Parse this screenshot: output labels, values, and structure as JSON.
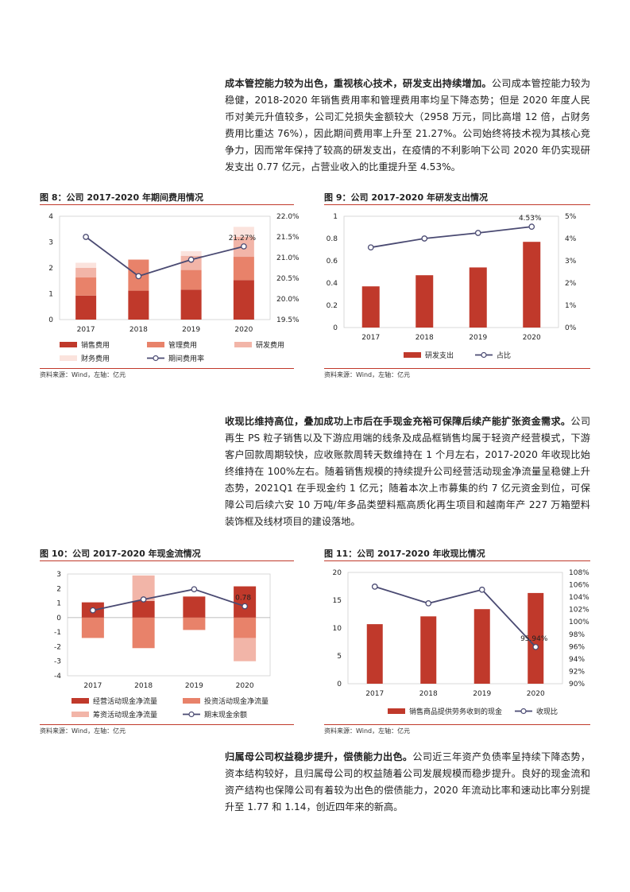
{
  "paragraphs": [
    {
      "bold": "成本管控能力较为出色，重视核心技术，研发支出持续增加。",
      "text": "公司成本管控能力较为稳健，2018-2020 年销售费用率和管理费用率均呈下降态势；但是 2020 年度人民币对美元升值较多，公司汇兑损失金额较大（2958 万元，同比高增 12 倍，占财务费用比重达 76%），因此期间费用率上升至 21.27%。公司始终将技术视为其核心竞争力，因而常年保持了较高的研发支出，在疫情的不利影响下公司 2020 年仍实现研发支出 0.77 亿元，占营业收入的比重提升至 4.53%。"
    },
    {
      "bold": "收现比维持高位，叠加成功上市后在手现金充裕可保障后续产能扩张资金需求。",
      "text": "公司再生 PS 粒子销售以及下游应用端的线条及成品框销售均属于轻资产经营模式，下游客户回款周期较快，应收账款周转天数维持在 1 个月左右，2017-2020 年收现比始终维持在 100%左右。随着销售规模的持续提升公司经营活动现金净流量呈稳健上升态势，2021Q1 在手现金约 1 亿元；随着本次上市募集的约 7 亿元资金到位，可保障公司后续六安 10 万吨/年多品类塑料瓶高质化再生项目和越南年产 227 万箱塑料装饰框及线材项目的建设落地。"
    },
    {
      "bold": "归属母公司权益稳步提升，偿债能力出色。",
      "text": "公司近三年资产负债率呈持续下降态势，资本结构较好，且归属母公司的权益随着公司发展规模而稳步提升。良好的现金流和资产结构也保障公司有着较为出色的偿债能力，2020 年流动比率和速动比率分别提升至 1.77 和 1.14，创近四年来的新高。"
    }
  ],
  "figures": [
    {
      "title": "图 8：公司 2017-2020 年期间费用情况",
      "source": "资料来源：Wind，左轴：亿元"
    },
    {
      "title": "图 9：公司 2017-2020 年研发支出情况",
      "source": "资料来源：Wind，左轴：亿元"
    },
    {
      "title": "图 10：公司 2017-2020 年现金流情况",
      "source": "资料来源：Wind，左轴：亿元"
    },
    {
      "title": "图 11：公司 2017-2020 年收现比情况",
      "source": "资料来源：Wind，左轴：亿元"
    }
  ],
  "chart_data": [
    {
      "type": "bar",
      "stacked": true,
      "categories": [
        "2017",
        "2018",
        "2019",
        "2020"
      ],
      "series": [
        {
          "name": "销售费用",
          "values": [
            0.93,
            1.12,
            1.16,
            1.53
          ],
          "color": "#c0392b"
        },
        {
          "name": "管理费用",
          "values": [
            0.7,
            1.2,
            0.76,
            0.9
          ],
          "color": "#e8826a"
        },
        {
          "name": "研发费用",
          "values": [
            0.37,
            0.0,
            0.55,
            0.77
          ],
          "color": "#f2b5a8"
        },
        {
          "name": "财务费用",
          "values": [
            0.2,
            0.02,
            0.18,
            0.39
          ],
          "color": "#fbe3dd"
        }
      ],
      "line": {
        "name": "期间费用率",
        "values": [
          21.5,
          20.55,
          20.95,
          21.27
        ],
        "color": "#4a4a72",
        "label_index": 3,
        "label": "21.27%"
      },
      "ylim": [
        0,
        4
      ],
      "yticks": [
        "0",
        "1",
        "2",
        "3",
        "4"
      ],
      "y2lim": [
        19.5,
        22.0
      ],
      "y2ticks": [
        "19.5%",
        "20.0%",
        "20.5%",
        "21.0%",
        "21.5%",
        "22.0%"
      ]
    },
    {
      "type": "bar",
      "categories": [
        "2017",
        "2018",
        "2019",
        "2020"
      ],
      "series": [
        {
          "name": "研发支出",
          "values": [
            0.37,
            0.47,
            0.54,
            0.77
          ],
          "color": "#c0392b"
        }
      ],
      "line": {
        "name": "占比",
        "values": [
          3.6,
          4.0,
          4.25,
          4.53
        ],
        "color": "#4a4a72",
        "label_index": 3,
        "label": "4.53%"
      },
      "ylim": [
        0,
        1
      ],
      "yticks": [
        "0",
        "0.2",
        "0.4",
        "0.6",
        "0.8",
        "1"
      ],
      "y2lim": [
        0,
        5
      ],
      "y2ticks": [
        "0%",
        "1%",
        "2%",
        "3%",
        "4%",
        "5%"
      ]
    },
    {
      "type": "bar",
      "stacked": true,
      "categories": [
        "2017",
        "2018",
        "2019",
        "2020"
      ],
      "series": [
        {
          "name": "经营活动现金净流量",
          "values": [
            1.05,
            1.15,
            1.45,
            2.15
          ],
          "color": "#c0392b"
        },
        {
          "name": "投资活动现金净流量",
          "values": [
            -1.4,
            -2.1,
            -0.85,
            -1.4
          ],
          "color": "#e8826a"
        },
        {
          "name": "筹资活动现金净流量",
          "values": [
            0.0,
            1.75,
            0.0,
            -1.6
          ],
          "color": "#f2b5a8"
        }
      ],
      "line": {
        "name": "期末现金余额",
        "values": [
          0.5,
          1.25,
          1.95,
          0.78
        ],
        "color": "#4a4a72",
        "label_index": 3,
        "label": "0.78"
      },
      "ylim": [
        -4,
        3
      ],
      "yticks": [
        "-4",
        "-3",
        "-2",
        "-1",
        "0",
        "1",
        "2",
        "3"
      ]
    },
    {
      "type": "bar",
      "categories": [
        "2017",
        "2018",
        "2019",
        "2020"
      ],
      "series": [
        {
          "name": "销售商品提供劳务收到的现金",
          "values": [
            10.7,
            12.1,
            13.4,
            16.3
          ],
          "color": "#c0392b"
        }
      ],
      "line": {
        "name": "收现比",
        "values": [
          105.7,
          103.0,
          105.2,
          95.94
        ],
        "color": "#4a4a72",
        "label_index": 3,
        "label": "95.94%"
      },
      "ylim": [
        0,
        20
      ],
      "yticks": [
        "0",
        "5",
        "10",
        "15",
        "20"
      ],
      "y2lim": [
        90,
        108
      ],
      "y2ticks": [
        "90%",
        "92%",
        "94%",
        "96%",
        "98%",
        "100%",
        "102%",
        "104%",
        "106%",
        "108%"
      ]
    }
  ]
}
